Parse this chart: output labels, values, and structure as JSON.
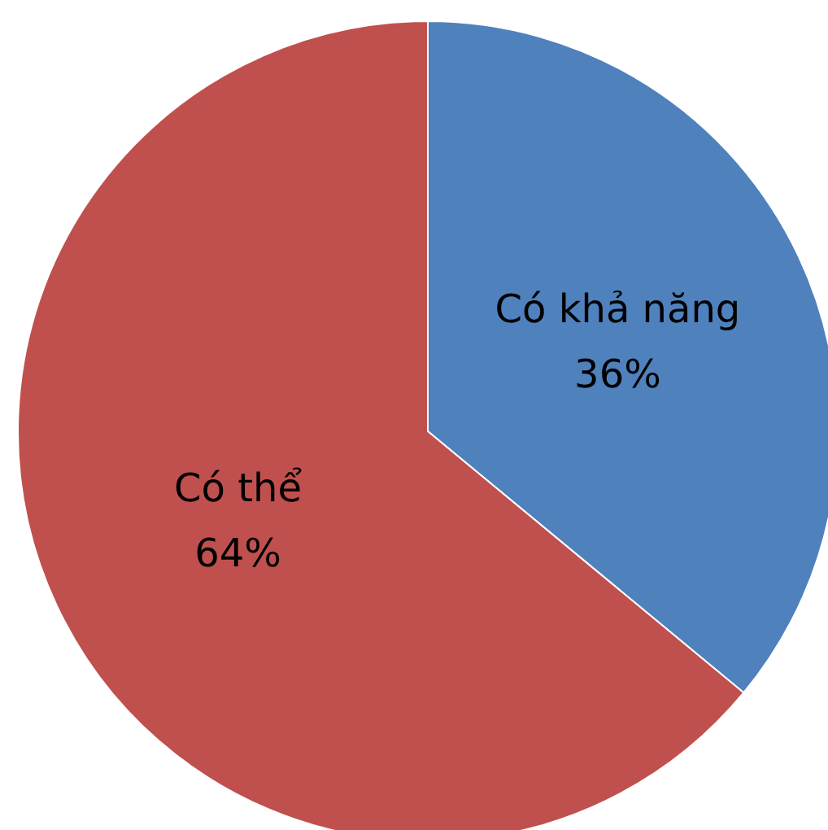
{
  "chart_data": {
    "type": "pie",
    "categories": [
      "Có khả năng",
      "Có thể"
    ],
    "values": [
      36,
      64
    ],
    "value_labels": [
      "36%",
      "64%"
    ],
    "colors": [
      "#4f81bd",
      "#c0504d"
    ]
  }
}
